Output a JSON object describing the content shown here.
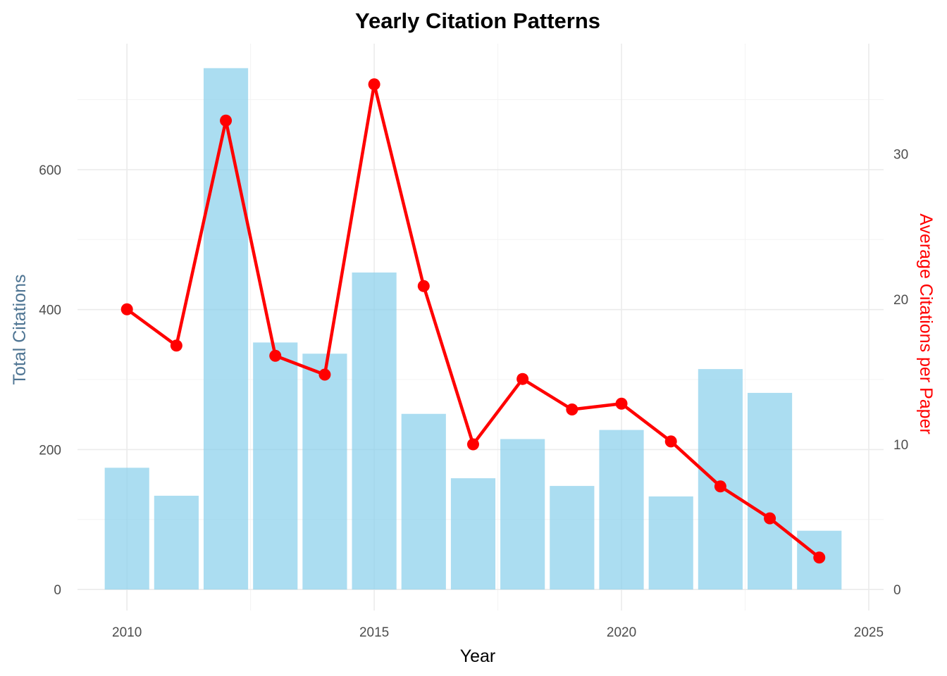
{
  "chart_data": {
    "type": "bar",
    "title": "Yearly Citation Patterns",
    "xlabel": "Year",
    "ylabel": "Total Citations",
    "y2label": "Average Citations per Paper",
    "xlim": [
      2009,
      2025.3
    ],
    "ylim": [
      -30,
      780
    ],
    "y2lim": [
      -1.45,
      37.6
    ],
    "x_ticks": [
      2010,
      2015,
      2020,
      2025
    ],
    "y_ticks": [
      0,
      200,
      400,
      600
    ],
    "y2_ticks": [
      0,
      10,
      20,
      30
    ],
    "grid": true,
    "colors": {
      "bars": "#87CEEB",
      "line": "#FF0000",
      "ylabel": "#4F7593",
      "y2label": "#FF0000"
    },
    "x": [
      2010,
      2011,
      2012,
      2013,
      2014,
      2015,
      2016,
      2017,
      2018,
      2019,
      2020,
      2021,
      2022,
      2023,
      2024
    ],
    "series": [
      {
        "type": "bar",
        "axis": "left",
        "values": [
          174,
          134,
          745,
          353,
          337,
          453,
          251,
          159,
          215,
          148,
          228,
          133,
          315,
          281,
          84
        ]
      },
      {
        "type": "line",
        "axis": "right",
        "values": [
          19.3,
          16.8,
          32.3,
          16.1,
          14.8,
          34.8,
          20.9,
          10.0,
          14.5,
          12.4,
          12.8,
          10.2,
          7.1,
          4.9,
          2.2
        ]
      }
    ]
  }
}
